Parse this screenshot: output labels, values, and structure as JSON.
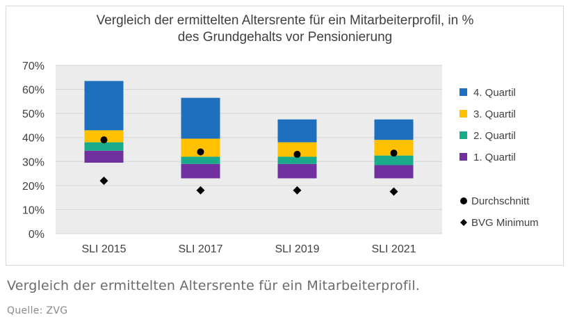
{
  "chart_data": {
    "type": "bar",
    "subtype": "stacked-floating",
    "title": "Vergleich der ermittelten Altersrente für ein Mitarbeiterprofil, in % des Grundgehalts vor Pensionierung",
    "categories": [
      "SLI 2015",
      "SLI 2017",
      "SLI 2019",
      "SLI 2021"
    ],
    "ylim": [
      0,
      70
    ],
    "yticks": [
      0,
      10,
      20,
      30,
      40,
      50,
      60,
      70
    ],
    "ytick_labels": [
      "0%",
      "10%",
      "20%",
      "30%",
      "40%",
      "50%",
      "60%",
      "70%"
    ],
    "grid": true,
    "legend_position": "right",
    "base": [
      29.5,
      23,
      23,
      23
    ],
    "series": [
      {
        "name": "1. Quartil",
        "color": "#7030a0",
        "values": [
          5.0,
          6.0,
          6.0,
          5.5
        ]
      },
      {
        "name": "2. Quartil",
        "color": "#1aab8a",
        "values": [
          3.5,
          3.0,
          3.0,
          4.0
        ]
      },
      {
        "name": "3. Quartil",
        "color": "#ffc000",
        "values": [
          5.0,
          7.5,
          6.0,
          6.5
        ]
      },
      {
        "name": "4. Quartil",
        "color": "#1f6fbf",
        "values": [
          20.5,
          17.0,
          9.5,
          8.5
        ]
      }
    ],
    "markers": [
      {
        "name": "Durchschnitt",
        "shape": "circle",
        "color": "#000000",
        "values": [
          39,
          34,
          33,
          33.5
        ]
      },
      {
        "name": "BVG Minimum",
        "shape": "diamond",
        "color": "#000000",
        "values": [
          22,
          18,
          18,
          17.5
        ]
      }
    ]
  },
  "chart_title_line1": "Vergleich der ermittelten Altersrente für ein Mitarbeiterprofil, in %",
  "chart_title_line2": "des Grundgehalts vor Pensionierung",
  "caption": "Vergleich der ermittelten Altersrente für ein Mitarbeiterprofil.",
  "source": "Quelle: ZVG"
}
